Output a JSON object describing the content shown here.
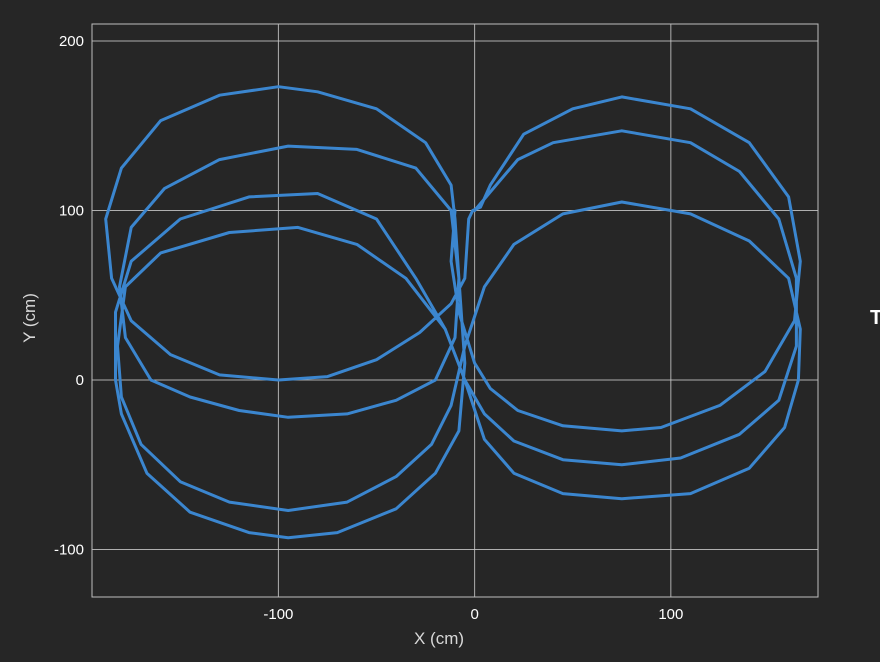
{
  "chart_data": {
    "type": "line",
    "xlabel": "X (cm)",
    "ylabel": "Y (cm)",
    "xlim": [
      -195,
      175
    ],
    "ylim": [
      -128,
      210
    ],
    "x_ticks": [
      -100,
      0,
      100
    ],
    "x_tick_labels": [
      "-100",
      "0",
      "100"
    ],
    "y_ticks": [
      -100,
      0,
      100,
      200
    ],
    "y_tick_labels": [
      "-100",
      "0",
      "100",
      "200"
    ],
    "grid": true,
    "line_color": "#3b86cf",
    "series": [
      {
        "points": [
          [
            0,
            100
          ],
          [
            22,
            130
          ],
          [
            40,
            140
          ],
          [
            75,
            147
          ],
          [
            110,
            140
          ],
          [
            135,
            123
          ],
          [
            155,
            95
          ],
          [
            164,
            60
          ],
          [
            164,
            20
          ],
          [
            155,
            -12
          ],
          [
            135,
            -32
          ],
          [
            105,
            -46
          ],
          [
            75,
            -50
          ],
          [
            45,
            -47
          ],
          [
            20,
            -36
          ],
          [
            5,
            -20
          ],
          [
            -5,
            0
          ],
          [
            -15,
            30
          ],
          [
            -35,
            60
          ],
          [
            -60,
            80
          ],
          [
            -90,
            90
          ],
          [
            -125,
            87
          ],
          [
            -160,
            75
          ],
          [
            -178,
            55
          ],
          [
            -182,
            20
          ],
          [
            -180,
            -10
          ],
          [
            -170,
            -38
          ],
          [
            -150,
            -60
          ],
          [
            -125,
            -72
          ],
          [
            -95,
            -77
          ],
          [
            -65,
            -72
          ],
          [
            -40,
            -57
          ],
          [
            -22,
            -38
          ],
          [
            -12,
            -15
          ],
          [
            -5,
            20
          ],
          [
            5,
            55
          ],
          [
            20,
            80
          ],
          [
            45,
            98
          ],
          [
            75,
            105
          ],
          [
            110,
            98
          ],
          [
            140,
            82
          ],
          [
            160,
            60
          ],
          [
            166,
            30
          ],
          [
            165,
            0
          ],
          [
            158,
            -28
          ],
          [
            140,
            -52
          ],
          [
            110,
            -67
          ],
          [
            75,
            -70
          ],
          [
            45,
            -67
          ],
          [
            20,
            -55
          ],
          [
            5,
            -35
          ],
          [
            -5,
            0
          ],
          [
            -15,
            30
          ],
          [
            -30,
            60
          ],
          [
            -50,
            95
          ],
          [
            -80,
            110
          ],
          [
            -115,
            108
          ],
          [
            -150,
            95
          ],
          [
            -175,
            70
          ],
          [
            -183,
            40
          ],
          [
            -183,
            0
          ],
          [
            -180,
            -20
          ],
          [
            -167,
            -55
          ],
          [
            -145,
            -78
          ],
          [
            -115,
            -90
          ],
          [
            -95,
            -93
          ],
          [
            -70,
            -90
          ],
          [
            -40,
            -76
          ],
          [
            -20,
            -55
          ],
          [
            -8,
            -30
          ],
          [
            -5,
            10
          ],
          [
            -8,
            60
          ],
          [
            -12,
            100
          ],
          [
            -30,
            125
          ],
          [
            -60,
            136
          ],
          [
            -95,
            138
          ],
          [
            -130,
            130
          ],
          [
            -158,
            113
          ],
          [
            -175,
            90
          ],
          [
            -181,
            55
          ],
          [
            -178,
            25
          ],
          [
            -165,
            0
          ],
          [
            -145,
            -10
          ],
          [
            -120,
            -18
          ],
          [
            -95,
            -22
          ],
          [
            -65,
            -20
          ],
          [
            -40,
            -12
          ],
          [
            -20,
            0
          ],
          [
            -10,
            25
          ],
          [
            -8,
            60
          ],
          [
            -10,
            95
          ],
          [
            -12,
            115
          ],
          [
            -25,
            140
          ],
          [
            -50,
            160
          ],
          [
            -80,
            170
          ],
          [
            -100,
            173
          ],
          [
            -130,
            168
          ],
          [
            -160,
            153
          ],
          [
            -180,
            125
          ],
          [
            -188,
            95
          ],
          [
            -185,
            60
          ],
          [
            -175,
            35
          ],
          [
            -155,
            15
          ],
          [
            -130,
            3
          ],
          [
            -100,
            0
          ],
          [
            -75,
            2
          ],
          [
            -50,
            12
          ],
          [
            -28,
            28
          ],
          [
            -12,
            45
          ],
          [
            -5,
            60
          ],
          [
            -3,
            95
          ],
          [
            -1,
            100
          ],
          [
            3,
            102
          ],
          [
            8,
            115
          ],
          [
            25,
            145
          ],
          [
            50,
            160
          ],
          [
            75,
            167
          ],
          [
            110,
            160
          ],
          [
            140,
            140
          ],
          [
            160,
            108
          ],
          [
            166,
            70
          ],
          [
            163,
            35
          ],
          [
            148,
            5
          ],
          [
            125,
            -15
          ],
          [
            95,
            -28
          ],
          [
            75,
            -30
          ],
          [
            45,
            -27
          ],
          [
            22,
            -18
          ],
          [
            8,
            -5
          ],
          [
            0,
            10
          ],
          [
            -8,
            40
          ],
          [
            -12,
            70
          ],
          [
            -10,
            100
          ]
        ]
      }
    ]
  },
  "side_label": "T"
}
